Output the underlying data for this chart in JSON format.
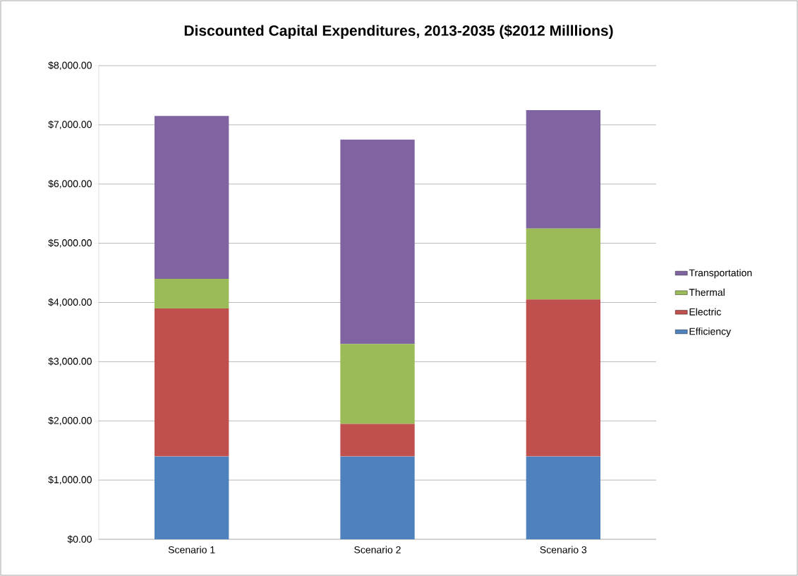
{
  "chart_data": {
    "type": "bar",
    "stacked": true,
    "title": "Discounted Capital Expenditures, 2013-2035 ($2012 Milllions)",
    "categories": [
      "Scenario 1",
      "Scenario 2",
      "Scenario 3"
    ],
    "series": [
      {
        "name": "Efficiency",
        "color": "#4f81bd",
        "values": [
          1400,
          1400,
          1400
        ]
      },
      {
        "name": "Electric",
        "color": "#c0504d",
        "values": [
          2500,
          550,
          2650
        ]
      },
      {
        "name": "Thermal",
        "color": "#9bbb59",
        "values": [
          500,
          1350,
          1200
        ]
      },
      {
        "name": "Transportation",
        "color": "#8064a2",
        "values": [
          2750,
          3450,
          2000
        ]
      }
    ],
    "ylim": [
      0,
      8000
    ],
    "yticks": [
      {
        "value": 0,
        "label": "$0.00"
      },
      {
        "value": 1000,
        "label": "$1,000.00"
      },
      {
        "value": 2000,
        "label": "$2,000.00"
      },
      {
        "value": 3000,
        "label": "$3,000.00"
      },
      {
        "value": 4000,
        "label": "$4,000.00"
      },
      {
        "value": 5000,
        "label": "$5,000.00"
      },
      {
        "value": 6000,
        "label": "$6,000.00"
      },
      {
        "value": 7000,
        "label": "$7,000.00"
      },
      {
        "value": 8000,
        "label": "$8,000.00"
      }
    ],
    "grid": "y",
    "legend": "right"
  }
}
